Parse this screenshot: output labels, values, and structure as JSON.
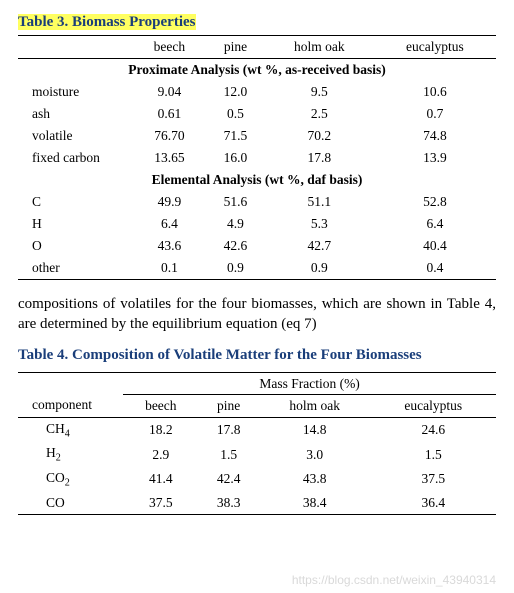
{
  "table3": {
    "title": "Table 3. Biomass Properties",
    "columns": [
      "beech",
      "pine",
      "holm oak",
      "eucalyptus"
    ],
    "section1": "Proximate Analysis (wt %, as-received basis)",
    "rows1": [
      {
        "label": "moisture",
        "v": [
          "9.04",
          "12.0",
          "9.5",
          "10.6"
        ]
      },
      {
        "label": "ash",
        "v": [
          "0.61",
          "0.5",
          "2.5",
          "0.7"
        ]
      },
      {
        "label": "volatile",
        "v": [
          "76.70",
          "71.5",
          "70.2",
          "74.8"
        ]
      },
      {
        "label": "fixed carbon",
        "v": [
          "13.65",
          "16.0",
          "17.8",
          "13.9"
        ]
      }
    ],
    "section2": "Elemental Analysis (wt %, daf basis)",
    "rows2": [
      {
        "label": "C",
        "v": [
          "49.9",
          "51.6",
          "51.1",
          "52.8"
        ]
      },
      {
        "label": "H",
        "v": [
          "6.4",
          "4.9",
          "5.3",
          "6.4"
        ]
      },
      {
        "label": "O",
        "v": [
          "43.6",
          "42.6",
          "42.7",
          "40.4"
        ]
      },
      {
        "label": "other",
        "v": [
          "0.1",
          "0.9",
          "0.9",
          "0.4"
        ]
      }
    ]
  },
  "para": "compositions of volatiles for the four biomasses, which are shown in Table 4, are determined by the equilibrium equation (eq 7)",
  "table4": {
    "title": "Table 4. Composition of Volatile Matter for the Four Biomasses",
    "group_header": "Mass Fraction (%)",
    "col_label": "component",
    "columns": [
      "beech",
      "pine",
      "holm oak",
      "eucalyptus"
    ],
    "rows": [
      {
        "label_html": "CH<sub>4</sub>",
        "v": [
          "18.2",
          "17.8",
          "14.8",
          "24.6"
        ]
      },
      {
        "label_html": "H<sub>2</sub>",
        "v": [
          "2.9",
          "1.5",
          "3.0",
          "1.5"
        ]
      },
      {
        "label_html": "CO<sub>2</sub>",
        "v": [
          "41.4",
          "42.4",
          "43.8",
          "37.5"
        ]
      },
      {
        "label_html": "CO",
        "v": [
          "37.5",
          "38.3",
          "38.4",
          "36.4"
        ]
      }
    ]
  },
  "watermark": "https://blog.csdn.net/weixin_43940314"
}
